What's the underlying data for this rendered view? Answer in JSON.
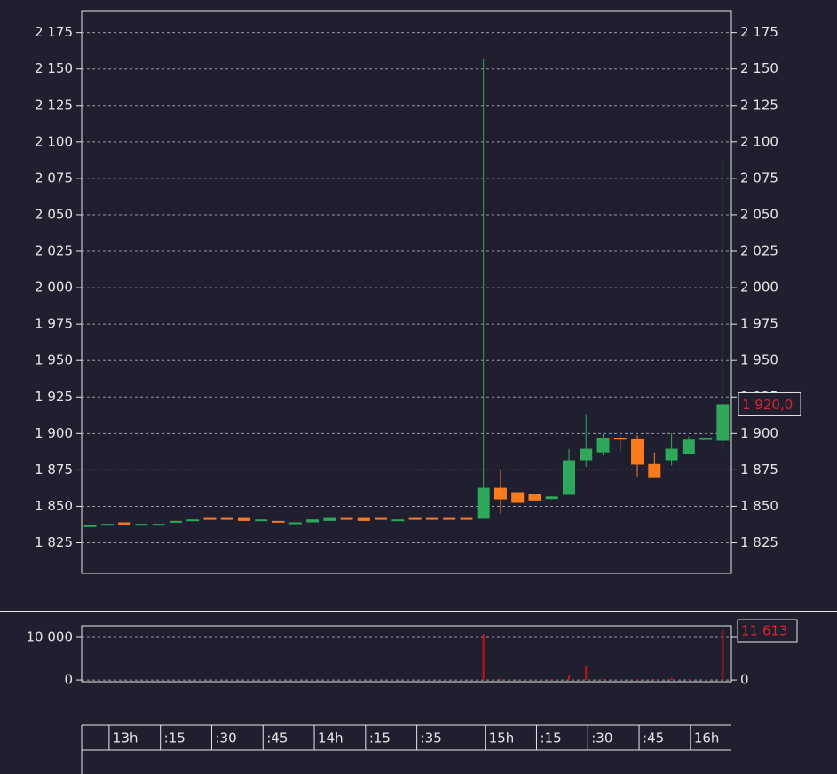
{
  "chart_data": [
    {
      "type": "candlestick",
      "categories": [
        null,
        "13h",
        null,
        null,
        ":15",
        null,
        null,
        ":30",
        null,
        null,
        ":45",
        null,
        null,
        "14h",
        null,
        null,
        ":15",
        null,
        null,
        ":35",
        null,
        null,
        null,
        "15h",
        null,
        null,
        ":15",
        null,
        null,
        ":30",
        null,
        null,
        ":45",
        null,
        null,
        "16h",
        null,
        null
      ],
      "open": [
        1837,
        1838,
        1839,
        1838,
        1838,
        1839,
        1840,
        1842,
        1842,
        1842,
        1840,
        1840,
        1839,
        1839,
        1840,
        1842,
        1842,
        1842,
        1841,
        1842,
        1842,
        1842,
        1842,
        1841.5,
        1862.7,
        1859.7,
        1858.5,
        1855,
        1857.9,
        1881.6,
        1887,
        1897,
        1896,
        1879,
        1881.6,
        1886,
        1895.6,
        1895
      ],
      "high": [
        1837,
        1838,
        1839,
        1838,
        1838,
        1840,
        1841,
        1842,
        1842,
        1842,
        1841,
        1840,
        1839,
        1841,
        1842,
        1842,
        1842,
        1842,
        1841,
        1842,
        1842,
        1842,
        1842,
        2156.7,
        1875,
        1859.7,
        1858.5,
        1857,
        1889.5,
        1913.3,
        1900,
        1899,
        1899,
        1887,
        1900,
        1898,
        1897,
        2087.3
      ],
      "low": [
        1837,
        1838,
        1837,
        1838,
        1838,
        1839,
        1840,
        1841,
        1841,
        1840,
        1840,
        1839,
        1839,
        1839,
        1840,
        1841,
        1840,
        1841,
        1840,
        1841,
        1841,
        1841,
        1841,
        1841.5,
        1845,
        1852.4,
        1854,
        1855,
        1857.9,
        1877,
        1885,
        1888,
        1870.6,
        1870,
        1878,
        1886,
        1895.6,
        1888.3
      ],
      "close": [
        1837,
        1838,
        1837,
        1838,
        1838,
        1840,
        1841,
        1841,
        1841,
        1840,
        1841,
        1839,
        1839,
        1841,
        1842,
        1841,
        1840,
        1841,
        1841,
        1841,
        1841,
        1841,
        1841,
        1862.7,
        1854.8,
        1852.4,
        1854,
        1856.8,
        1881.6,
        1889.5,
        1897,
        1896.8,
        1878.6,
        1870,
        1889.5,
        1895.8,
        1896.8,
        1920
      ],
      "up_color": "#2ea85a",
      "down_color": "#ff7a1a",
      "ylim": [
        1804,
        2190
      ],
      "yticks": [
        {
          "value": 1825,
          "label": "1 825"
        },
        {
          "value": 1850,
          "label": "1 850"
        },
        {
          "value": 1875,
          "label": "1 875"
        },
        {
          "value": 1900,
          "label": "1 900"
        },
        {
          "value": 1925,
          "label": "1 925"
        },
        {
          "value": 1950,
          "label": "1 950"
        },
        {
          "value": 1975,
          "label": "1 975"
        },
        {
          "value": 2000,
          "label": "2 000"
        },
        {
          "value": 2025,
          "label": "2 025"
        },
        {
          "value": 2050,
          "label": "2 050"
        },
        {
          "value": 2075,
          "label": "2 075"
        },
        {
          "value": 2100,
          "label": "2 100"
        },
        {
          "value": 2125,
          "label": "2 125"
        },
        {
          "value": 2150,
          "label": "2 150"
        },
        {
          "value": 2175,
          "label": "2 175"
        }
      ],
      "grid": true,
      "last_price": {
        "value": 1920,
        "label": "1 920,0"
      }
    },
    {
      "type": "bar",
      "values": [
        0,
        0,
        0,
        0,
        0,
        0,
        0,
        0,
        0,
        0,
        0,
        0,
        0,
        0,
        0,
        0,
        0,
        0,
        0,
        0,
        0,
        0,
        0,
        10833,
        400,
        100,
        100,
        200,
        1000,
        3333,
        300,
        200,
        200,
        200,
        500,
        200,
        100,
        11613
      ],
      "color": "#d01010",
      "ylim": [
        -400,
        12700
      ],
      "yticks": [
        0,
        {
          "value": 10000,
          "label": "10 000"
        }
      ],
      "grid": true,
      "last_volume": {
        "value": 11613,
        "label": "11 613"
      }
    }
  ]
}
